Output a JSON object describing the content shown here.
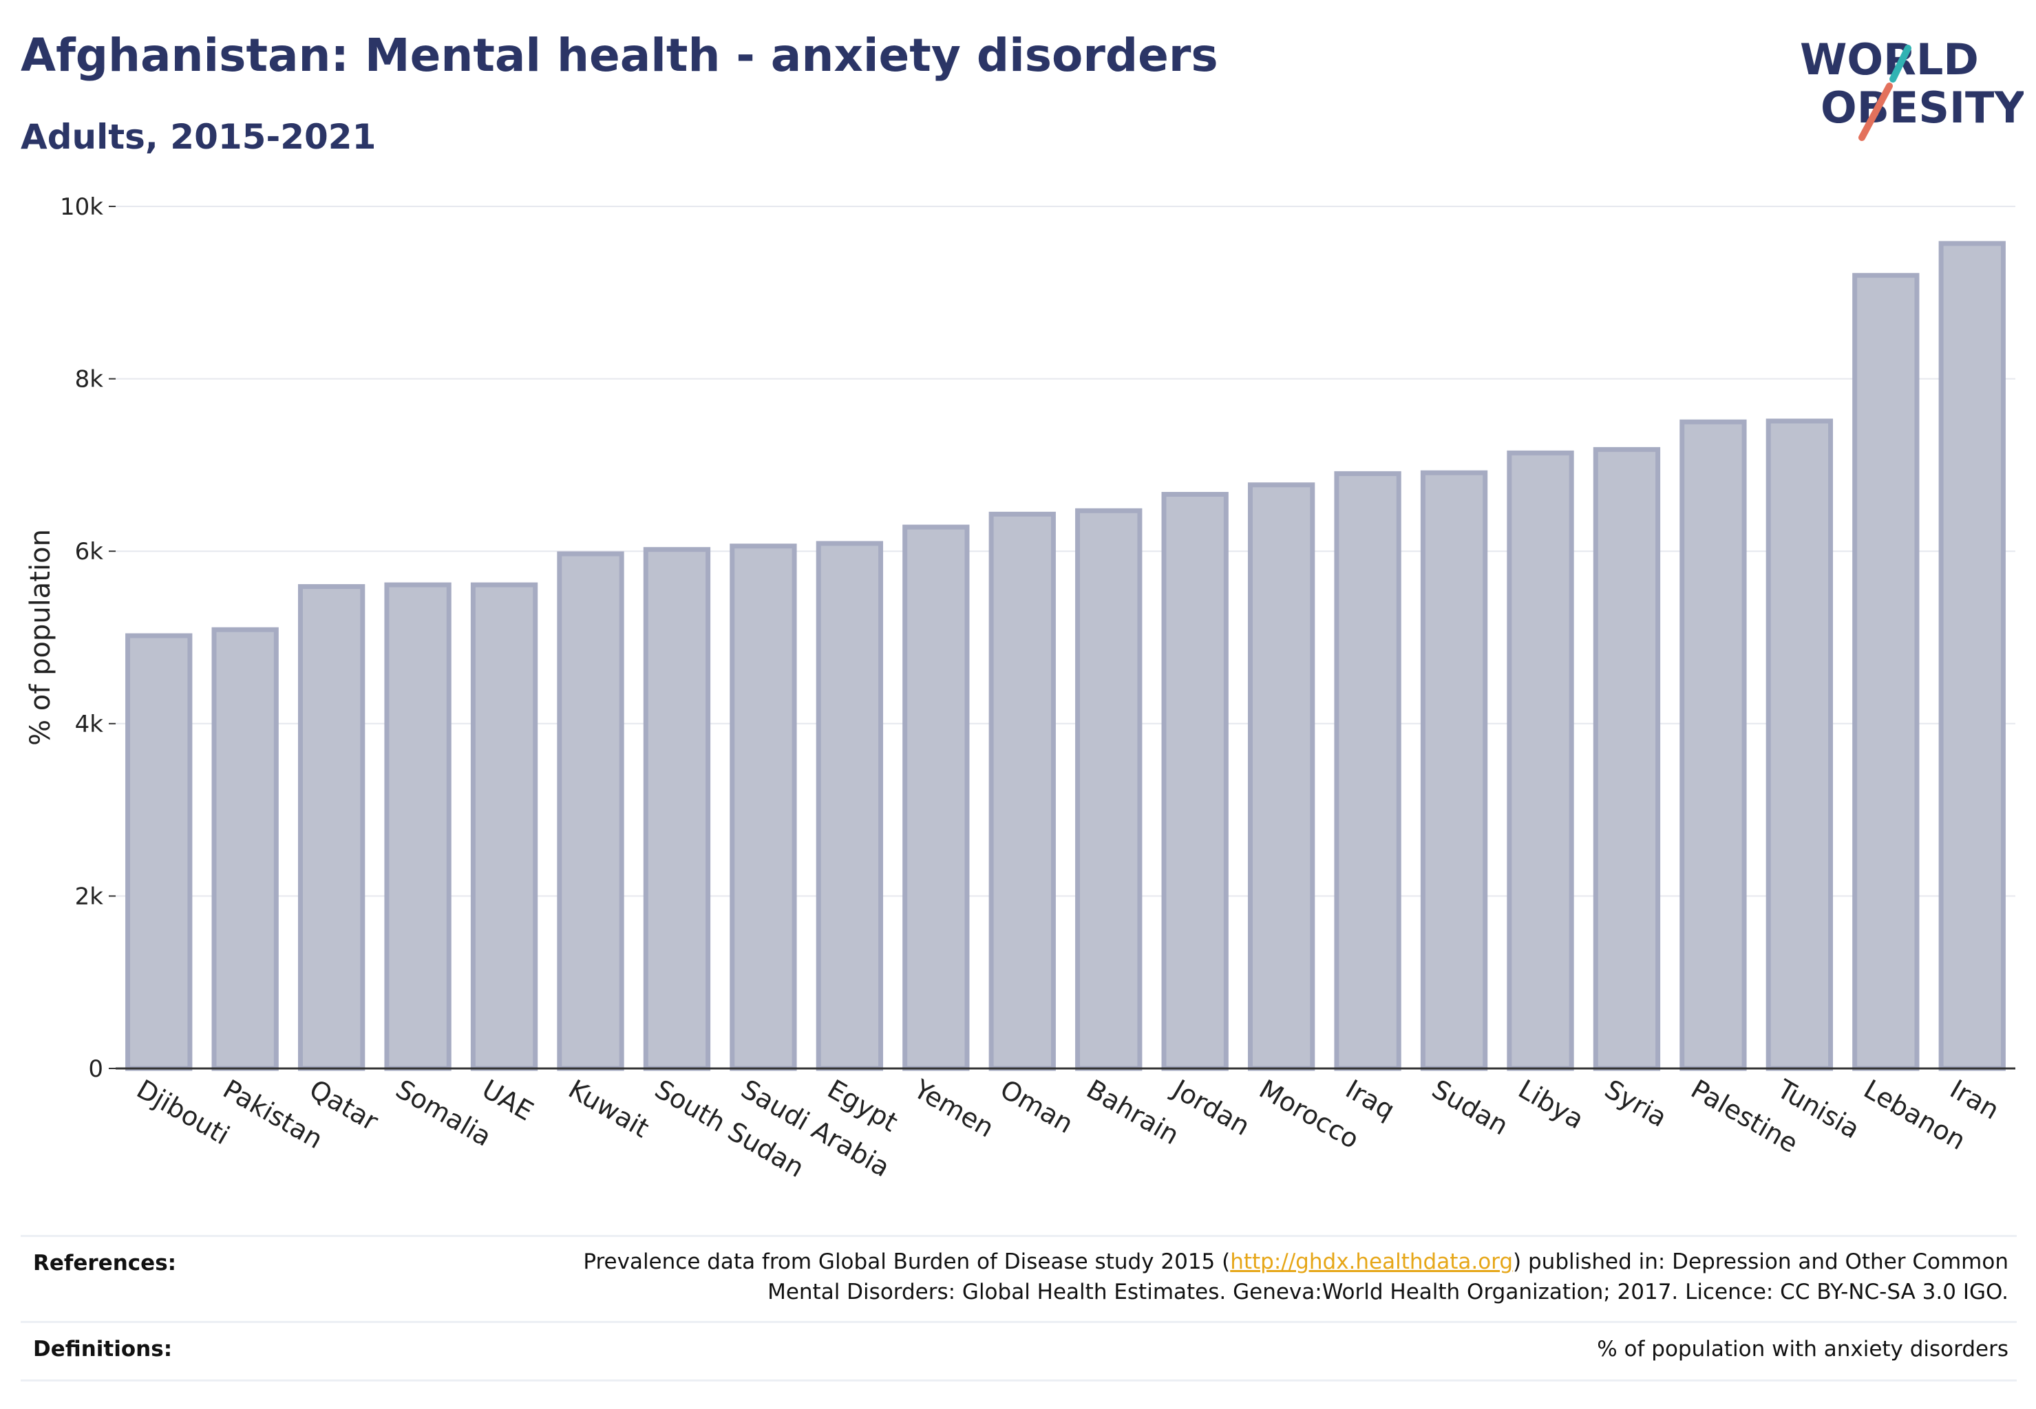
{
  "header": {
    "title": "Afghanistan: Mental health - anxiety disorders",
    "subtitle": "Adults, 2015-2021"
  },
  "logo": {
    "line1": "WORLD",
    "line2": "OBESITY",
    "icon": "world-obesity-logo"
  },
  "chart_data": {
    "type": "bar",
    "title": "Afghanistan: Mental health - anxiety disorders",
    "subtitle": "Adults, 2015-2021",
    "xlabel": "",
    "ylabel": "% of population",
    "ylim": [
      0,
      10000
    ],
    "yticks": [
      0,
      2000,
      4000,
      6000,
      8000,
      10000
    ],
    "ytick_labels": [
      "0",
      "2k",
      "4k",
      "6k",
      "8k",
      "10k"
    ],
    "grid": true,
    "categories": [
      "Djibouti",
      "Pakistan",
      "Qatar",
      "Somalia",
      "UAE",
      "Kuwait",
      "South Sudan",
      "Saudi Arabia",
      "Egypt",
      "Yemen",
      "Oman",
      "Bahrain",
      "Jordan",
      "Morocco",
      "Iraq",
      "Sudan",
      "Libya",
      "Syria",
      "Palestine",
      "Tunisia",
      "Lebanon",
      "Iran"
    ],
    "values": [
      5020,
      5090,
      5590,
      5610,
      5610,
      5970,
      6020,
      6060,
      6090,
      6280,
      6430,
      6470,
      6660,
      6770,
      6900,
      6910,
      7140,
      7180,
      7500,
      7510,
      9200,
      9570
    ],
    "bar_color": "#bdc1cf",
    "bar_edge_color": "#a6abc2"
  },
  "references": {
    "label": "References:",
    "text_before": "Prevalence data from Global Burden of Disease study 2015 (",
    "link": "http://ghdx.healthdata.org",
    "text_after": ") published in: Depression and Other Common",
    "line2": "Mental Disorders: Global Health Estimates. Geneva:World Health Organization; 2017. Licence: CC BY-NC-SA 3.0 IGO."
  },
  "definitions": {
    "label": "Definitions:",
    "text": "% of population with anxiety disorders"
  }
}
